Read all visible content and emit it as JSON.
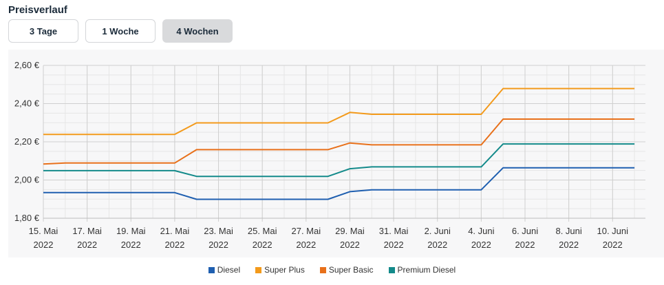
{
  "header": {
    "title": "Preisverlauf"
  },
  "range_buttons": [
    {
      "label": "3 Tage",
      "active": false
    },
    {
      "label": "1 Woche",
      "active": false
    },
    {
      "label": "4 Wochen",
      "active": true
    }
  ],
  "chart_data": {
    "type": "line",
    "x": [
      "2022-05-15",
      "2022-05-16",
      "2022-05-17",
      "2022-05-18",
      "2022-05-19",
      "2022-05-20",
      "2022-05-21",
      "2022-05-22",
      "2022-05-23",
      "2022-05-24",
      "2022-05-25",
      "2022-05-26",
      "2022-05-27",
      "2022-05-28",
      "2022-05-29",
      "2022-05-30",
      "2022-05-31",
      "2022-06-01",
      "2022-06-02",
      "2022-06-03",
      "2022-06-04",
      "2022-06-05",
      "2022-06-06",
      "2022-06-07",
      "2022-06-08",
      "2022-06-09",
      "2022-06-10",
      "2022-06-11"
    ],
    "x_tick_labels": [
      {
        "date": "2022-05-15",
        "line1": "15. Mai",
        "line2": "2022"
      },
      {
        "date": "2022-05-17",
        "line1": "17. Mai",
        "line2": "2022"
      },
      {
        "date": "2022-05-19",
        "line1": "19. Mai",
        "line2": "2022"
      },
      {
        "date": "2022-05-21",
        "line1": "21. Mai",
        "line2": "2022"
      },
      {
        "date": "2022-05-23",
        "line1": "23. Mai",
        "line2": "2022"
      },
      {
        "date": "2022-05-25",
        "line1": "25. Mai",
        "line2": "2022"
      },
      {
        "date": "2022-05-27",
        "line1": "27. Mai",
        "line2": "2022"
      },
      {
        "date": "2022-05-29",
        "line1": "29. Mai",
        "line2": "2022"
      },
      {
        "date": "2022-05-31",
        "line1": "31. Mai",
        "line2": "2022"
      },
      {
        "date": "2022-06-02",
        "line1": "2. Juni",
        "line2": "2022"
      },
      {
        "date": "2022-06-04",
        "line1": "4. Juni",
        "line2": "2022"
      },
      {
        "date": "2022-06-06",
        "line1": "6. Juni",
        "line2": "2022"
      },
      {
        "date": "2022-06-08",
        "line1": "8. Juni",
        "line2": "2022"
      },
      {
        "date": "2022-06-10",
        "line1": "10. Juni",
        "line2": "2022"
      }
    ],
    "y_ticks": [
      {
        "value": 1.8,
        "label": "1,80 €"
      },
      {
        "value": 2.0,
        "label": "2,00 €"
      },
      {
        "value": 2.2,
        "label": "2,20 €"
      },
      {
        "value": 2.4,
        "label": "2,40 €"
      },
      {
        "value": 2.6,
        "label": "2,60 €"
      }
    ],
    "ylim": [
      1.8,
      2.6
    ],
    "grid": true,
    "legend_position": "bottom-center",
    "series": [
      {
        "name": "Diesel",
        "color": "#1f5fb0",
        "values": [
          1.934,
          1.934,
          1.934,
          1.934,
          1.934,
          1.934,
          1.934,
          1.899,
          1.899,
          1.899,
          1.899,
          1.899,
          1.899,
          1.899,
          1.939,
          1.949,
          1.949,
          1.949,
          1.949,
          1.949,
          1.949,
          2.064,
          2.064,
          2.064,
          2.064,
          2.064,
          2.064,
          2.064
        ]
      },
      {
        "name": "Super Plus",
        "color": "#f39a1b",
        "values": [
          2.239,
          2.239,
          2.239,
          2.239,
          2.239,
          2.239,
          2.239,
          2.299,
          2.299,
          2.299,
          2.299,
          2.299,
          2.299,
          2.299,
          2.354,
          2.344,
          2.344,
          2.344,
          2.344,
          2.344,
          2.344,
          2.479,
          2.479,
          2.479,
          2.479,
          2.479,
          2.479,
          2.479
        ]
      },
      {
        "name": "Super Basic",
        "color": "#e8701a",
        "values": [
          2.084,
          2.089,
          2.089,
          2.089,
          2.089,
          2.089,
          2.089,
          2.159,
          2.159,
          2.159,
          2.159,
          2.159,
          2.159,
          2.159,
          2.194,
          2.184,
          2.184,
          2.184,
          2.184,
          2.184,
          2.184,
          2.319,
          2.319,
          2.319,
          2.319,
          2.319,
          2.319,
          2.319
        ]
      },
      {
        "name": "Premium Diesel",
        "color": "#138a8a",
        "values": [
          2.049,
          2.049,
          2.049,
          2.049,
          2.049,
          2.049,
          2.049,
          2.019,
          2.019,
          2.019,
          2.019,
          2.019,
          2.019,
          2.019,
          2.059,
          2.069,
          2.069,
          2.069,
          2.069,
          2.069,
          2.069,
          2.189,
          2.189,
          2.189,
          2.189,
          2.189,
          2.189,
          2.189
        ]
      }
    ]
  }
}
